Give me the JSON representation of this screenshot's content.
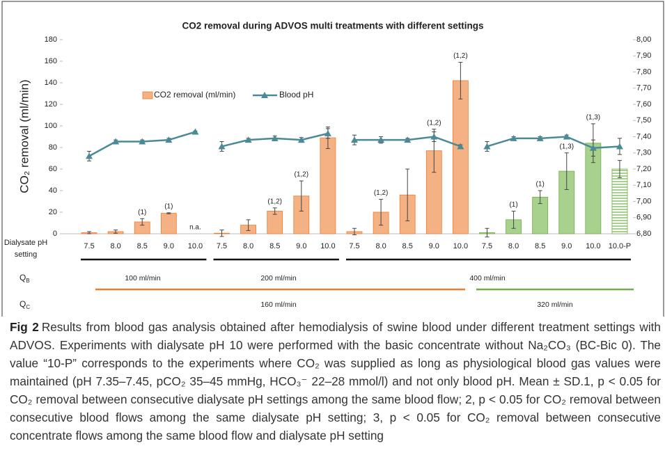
{
  "chart_data": {
    "type": "bar",
    "title": "CO2 removal during ADVOS multi treatments with different settings",
    "y_label": "CO₂ removal (ml/min)",
    "x_label": [
      "Dialysate pH",
      "setting"
    ],
    "categories": [
      "7.5",
      "8.0",
      "8.5",
      "9.0",
      "10.0",
      "7.5",
      "8.0",
      "8.5",
      "9.0",
      "10.0",
      "7.5",
      "8.0",
      "8.5",
      "9.0",
      "10.0",
      "7.5",
      "8.0",
      "8.5",
      "9.0",
      "10.0",
      "10.0-P"
    ],
    "series": [
      {
        "name": "CO2 removal (ml/min)",
        "type": "bar",
        "colors": [
          "#f4b183",
          "#f4b183",
          "#f4b183",
          "#f4b183",
          "#f4b183",
          "#f4b183",
          "#f4b183",
          "#f4b183",
          "#f4b183",
          "#f4b183",
          "#f4b183",
          "#f4b183",
          "#f4b183",
          "#f4b183",
          "#f4b183",
          "#a9d18e",
          "#a9d18e",
          "#a9d18e",
          "#a9d18e",
          "#a9d18e",
          "#a9d18e"
        ],
        "values": [
          1,
          2,
          11,
          19,
          null,
          0.5,
          8,
          21,
          35,
          89,
          2,
          20,
          36,
          77,
          142,
          1,
          13,
          34,
          58,
          84,
          60
        ],
        "errors": [
          1,
          1.5,
          3,
          0.5,
          null,
          3,
          5,
          3,
          14,
          10,
          3,
          12,
          24,
          20,
          17,
          4,
          8,
          6,
          17,
          18,
          8
        ],
        "annotations": [
          null,
          null,
          "(1)",
          "(1)",
          null,
          null,
          null,
          "(1,2)",
          "(1,2)",
          null,
          null,
          "(1,2)",
          null,
          "(1,2)",
          "(1,2)",
          null,
          "(1)",
          "(1)",
          "(1,3)",
          "(1,3)",
          null
        ]
      },
      {
        "name": "Blood pH",
        "type": "line",
        "axis": "y2",
        "color": "#4a8a96",
        "values": [
          7.28,
          7.37,
          7.37,
          7.38,
          7.43,
          7.34,
          7.38,
          7.39,
          7.38,
          7.42,
          7.38,
          7.38,
          7.38,
          7.4,
          7.34,
          7.34,
          7.39,
          7.39,
          7.4,
          7.33,
          7.34
        ],
        "errors": [
          0.03,
          0.01,
          0.01,
          0.01,
          0.005,
          0.03,
          0.01,
          0.015,
          0.015,
          0.03,
          0.03,
          0.02,
          0.01,
          0.03,
          0.01,
          0.03,
          0.01,
          0.01,
          0.01,
          0.05,
          0.05
        ]
      }
    ],
    "missing_label": "n.a.",
    "hatched": [
      20
    ],
    "ylim": [
      0,
      180
    ],
    "yticks": [
      0,
      20,
      40,
      60,
      80,
      100,
      120,
      140,
      160,
      180
    ],
    "y2lim": [
      6.8,
      8.0
    ],
    "y2ticks": [
      {
        "value": 6.8,
        "label": "6,80"
      },
      {
        "value": 6.9,
        "label": "6,90"
      },
      {
        "value": 7.0,
        "label": "7,00"
      },
      {
        "value": 7.1,
        "label": "7,10"
      },
      {
        "value": 7.2,
        "label": "7,20"
      },
      {
        "value": 7.3,
        "label": "7,30"
      },
      {
        "value": 7.4,
        "label": "7,40"
      },
      {
        "value": 7.5,
        "label": "7,50"
      },
      {
        "value": 7.6,
        "label": "7,60"
      },
      {
        "value": 7.7,
        "label": "7,70"
      },
      {
        "value": 7.8,
        "label": "7,80"
      },
      {
        "value": 7.9,
        "label": "7,90"
      },
      {
        "value": 8.0,
        "label": "8,00"
      }
    ],
    "legend": "top-left",
    "rows": [
      {
        "label": "Q",
        "subscript": "B",
        "values": [
          "100 ml/min",
          "200 ml/min",
          "400 ml/min"
        ]
      },
      {
        "label": "Q",
        "subscript": "C",
        "values": [
          "160 ml/min",
          "320 ml/min"
        ]
      }
    ]
  },
  "caption": {
    "label": "Fig 2",
    "text": "Results from blood gas analysis obtained after hemodialysis of swine blood under different treatment settings with ADVOS. Experiments with dialysate pH 10 were performed with the basic concentrate without Na₂CO₃ (BC-Bic 0). The value “10-P” corresponds to the experiments where CO₂ was supplied as long as physiological blood gas values were maintained (pH 7.35–7.45, pCO₂ 35–45 mmHg, HCO₃⁻ 22–28 mmol/l) and not only blood pH. Mean ± SD.1, p < 0.05 for CO₂ removal between consecutive dialysate pH settings among the same blood flow; 2, p < 0.05 for CO₂ removal between consecutive blood flows among the same dialysate pH setting; 3, p < 0.05 for CO₂ removal between consecutive concentrate flows among the same blood flow and dialysate pH setting"
  }
}
